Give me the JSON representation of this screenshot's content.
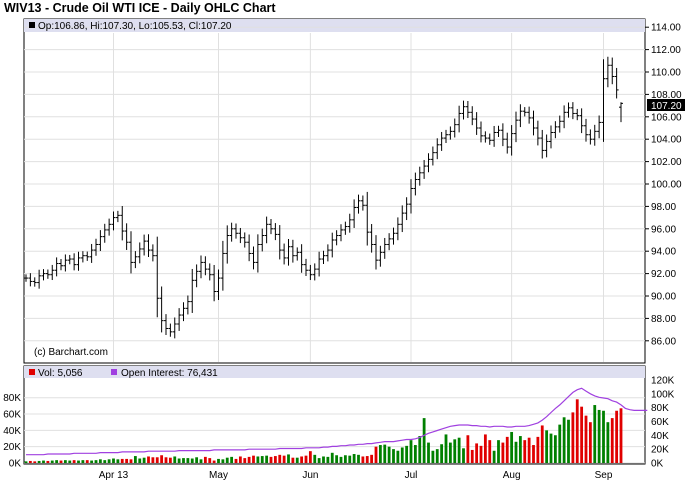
{
  "header": {
    "title": "WIV13 - Crude Oil WTI ICE - Daily OHLC Chart"
  },
  "price_panel": {
    "legend": "Op:106.86, Hi:107.30, Lo:105.53, Cl:107.20",
    "last_price_label": "107.20",
    "watermark": "(c) Barchart.com"
  },
  "volume_panel": {
    "vol_legend": "Vol: 5,056",
    "oi_legend": "Open Interest: 76,431"
  },
  "colors": {
    "price_bar": "#000000",
    "grid": "#e0e0e0",
    "legend_band": "#dedff0",
    "vol_up": "#008000",
    "vol_down": "#e00000",
    "open_interest": "#a040e0"
  },
  "chart_data": [
    {
      "type": "ohlc",
      "title": "WIV13 - Crude Oil WTI ICE - Daily OHLC Chart",
      "ylim": [
        84,
        115
      ],
      "yticks": [
        "86.00",
        "88.00",
        "90.00",
        "92.00",
        "94.00",
        "96.00",
        "98.00",
        "100.00",
        "102.00",
        "104.00",
        "106.00",
        "108.00",
        "110.00",
        "112.00",
        "114.00"
      ],
      "ytick_values": [
        86,
        88,
        90,
        92,
        94,
        96,
        98,
        100,
        102,
        104,
        106,
        108,
        110,
        112,
        114
      ],
      "month_labels": [
        "Apr 13",
        "May",
        "Jun",
        "Jul",
        "Aug",
        "Sep"
      ],
      "month_start_index": [
        20,
        44,
        65,
        88,
        111,
        132
      ],
      "last_bar": {
        "open": 106.86,
        "high": 107.3,
        "low": 105.53,
        "close": 107.2
      },
      "close": [
        91.6,
        91.3,
        91.2,
        91.8,
        92.0,
        91.9,
        92.3,
        92.9,
        92.7,
        93.2,
        93.3,
        92.8,
        93.4,
        93.6,
        93.5,
        94.1,
        94.6,
        95.3,
        95.9,
        96.4,
        97.0,
        97.2,
        95.8,
        94.8,
        93.0,
        93.5,
        94.2,
        94.9,
        94.1,
        93.6,
        89.8,
        87.8,
        87.1,
        86.8,
        87.5,
        88.3,
        88.9,
        89.5,
        91.4,
        92.2,
        93.0,
        92.4,
        91.9,
        90.4,
        91.6,
        93.8,
        95.4,
        96.0,
        95.6,
        95.2,
        94.8,
        93.8,
        93.0,
        94.6,
        95.4,
        96.4,
        96.0,
        95.5,
        94.1,
        93.4,
        94.4,
        93.6,
        93.9,
        92.8,
        92.3,
        91.9,
        92.4,
        93.3,
        93.6,
        94.1,
        95.0,
        95.4,
        95.9,
        96.2,
        96.8,
        97.9,
        98.5,
        98.1,
        95.7,
        94.6,
        93.2,
        93.9,
        94.6,
        95.1,
        95.6,
        96.4,
        97.4,
        98.2,
        99.6,
        100.4,
        101.0,
        101.6,
        102.2,
        102.8,
        103.5,
        104.1,
        104.4,
        104.7,
        105.3,
        106.3,
        106.9,
        106.4,
        105.8,
        105.0,
        104.3,
        104.1,
        103.9,
        104.6,
        104.8,
        104.0,
        103.3,
        104.5,
        105.7,
        106.5,
        106.4,
        105.9,
        105.0,
        104.1,
        103.0,
        103.8,
        104.6,
        105.1,
        105.6,
        106.4,
        106.8,
        106.3,
        106.1,
        105.2,
        104.4,
        104.0,
        104.7,
        105.5,
        109.4,
        110.6,
        109.6,
        108.4,
        107.2
      ],
      "volume_k": [
        2.0,
        2.5,
        2.0,
        2.5,
        3.0,
        2.5,
        3.0,
        3.5,
        3.0,
        3.5,
        3.0,
        3.5,
        3.0,
        3.5,
        3.5,
        3.0,
        3.5,
        4.5,
        3.5,
        4.5,
        5.5,
        4.5,
        5.0,
        5.0,
        4.5,
        8.5,
        5.5,
        6.5,
        8.0,
        7.0,
        7.0,
        9.5,
        7.0,
        6.5,
        8.0,
        5.5,
        6.0,
        6.0,
        5.5,
        7.0,
        4.5,
        7.5,
        6.0,
        3.0,
        5.0,
        4.5,
        6.5,
        7.5,
        5.0,
        8.0,
        6.0,
        7.5,
        9.0,
        8.0,
        8.5,
        9.0,
        7.5,
        8.5,
        10.0,
        9.0,
        10.5,
        6.5,
        6.5,
        8.0,
        9.0,
        14.5,
        10.0,
        6.0,
        8.0,
        7.5,
        12.5,
        9.5,
        7.5,
        9.5,
        9.0,
        11.0,
        10.0,
        8.0,
        8.5,
        10.0,
        20.0,
        22.0,
        22.5,
        20.0,
        17.0,
        15.0,
        19.0,
        21.0,
        28.0,
        22.0,
        33.0,
        55.0,
        25.0,
        15.0,
        17.0,
        23.0,
        35.0,
        25.0,
        29.0,
        31.0,
        18.0,
        34.0,
        16.0,
        24.0,
        21.0,
        35.0,
        28.0,
        15.0,
        28.0,
        25.0,
        32.0,
        38.0,
        26.0,
        33.0,
        28.0,
        31.0,
        22.0,
        32.0,
        46.0,
        40.0,
        36.0,
        34.0,
        47.0,
        56.0,
        53.0,
        62.0,
        78.0,
        69.0,
        58.0,
        50.0,
        71.0,
        65.0,
        64.0,
        50.0,
        55.0,
        64.0,
        67.0,
        64.0,
        5.0
      ],
      "open_interest_k": [
        12,
        12,
        12,
        12,
        12,
        13,
        13,
        13,
        13,
        13,
        13,
        14,
        14,
        14,
        14,
        14,
        14,
        15,
        15,
        15,
        15,
        15,
        16,
        16,
        16,
        16,
        16,
        16,
        17,
        17,
        17,
        17,
        17,
        17,
        17,
        18,
        18,
        18,
        18,
        18,
        18,
        18,
        18,
        19,
        19,
        19,
        19,
        19,
        19,
        19,
        19,
        20,
        20,
        20,
        20,
        20,
        20,
        20,
        21,
        21,
        21,
        21,
        21,
        21,
        22,
        22,
        22,
        22,
        23,
        23,
        24,
        24,
        25,
        25,
        26,
        26,
        27,
        27,
        28,
        28,
        29,
        30,
        31,
        31,
        31,
        32,
        33,
        34,
        34,
        35,
        37,
        40,
        43,
        45,
        47,
        49,
        51,
        53,
        54,
        55,
        55,
        55,
        54,
        54,
        53,
        53,
        52,
        53,
        53,
        53,
        52,
        52,
        53,
        53,
        53,
        54,
        56,
        58,
        62,
        67,
        73,
        79,
        84,
        90,
        96,
        102,
        106,
        108,
        104,
        100,
        97,
        95,
        94,
        93,
        90,
        88,
        84,
        79,
        77,
        76,
        76,
        76,
        76
      ]
    }
  ]
}
